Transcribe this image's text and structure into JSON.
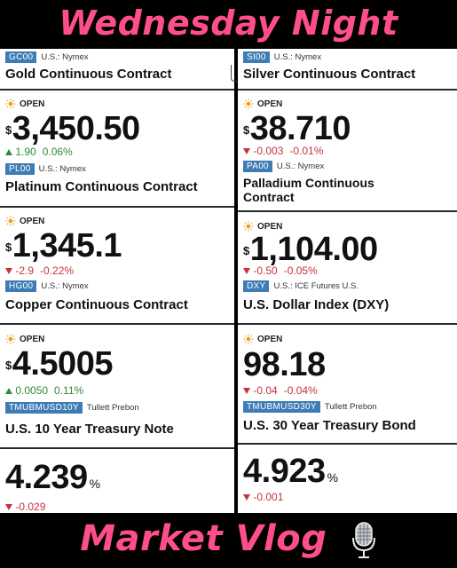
{
  "banner": {
    "top": "Wednesday Night",
    "bottom": "Market Vlog"
  },
  "colors": {
    "banner": "#ff4f8b",
    "badge": "#3d7cb5",
    "up": "#2f8a3b",
    "down": "#c8323c"
  },
  "icons": {
    "open": "sun-icon",
    "up": "triangle-up-icon",
    "down": "triangle-down-icon",
    "mic": "microphone-icon"
  },
  "left": {
    "gold": {
      "ticker": "GC00",
      "exchange": "U.S.: Nymex",
      "name": "Gold Continuous Contract"
    },
    "gold_quote": {
      "status": "OPEN",
      "currency": "$",
      "price": "3,450.50",
      "change": "1.90",
      "change_pct": "0.06%"
    },
    "platinum": {
      "ticker": "PL00",
      "exchange": "U.S.: Nymex",
      "name": "Platinum Continuous Contract"
    },
    "platinum_quote": {
      "status": "OPEN",
      "currency": "$",
      "price": "1,345.1",
      "change": "-2.9",
      "change_pct": "-0.22%"
    },
    "copper": {
      "ticker": "HG00",
      "exchange": "U.S.: Nymex",
      "name": "Copper Continuous Contract"
    },
    "copper_quote": {
      "status": "OPEN",
      "currency": "$",
      "price": "4.5005",
      "change": "0.0050",
      "change_pct": "0.11%"
    },
    "tnote10": {
      "ticker": "TMUBMUSD10Y",
      "exchange": "Tullett Prebon",
      "name": "U.S. 10 Year Treasury Note"
    },
    "tnote10_quote": {
      "price": "4.239",
      "unit": "%",
      "change": "-0.029"
    }
  },
  "right": {
    "silver": {
      "ticker": "SI00",
      "exchange": "U.S.: Nymex",
      "name": "Silver Continuous Contract"
    },
    "silver_quote": {
      "status": "OPEN",
      "currency": "$",
      "price": "38.710",
      "change": "-0.003",
      "change_pct": "-0.01%"
    },
    "palladium": {
      "ticker": "PA00",
      "exchange": "U.S.: Nymex",
      "name_line1": "Palladium Continuous",
      "name_line2": "Contract"
    },
    "palladium_quote": {
      "status": "OPEN",
      "currency": "$",
      "price": "1,104.00",
      "change": "-0.50",
      "change_pct": "-0.05%"
    },
    "dxy": {
      "ticker": "DXY",
      "exchange": "U.S.: ICE Futures U.S.",
      "name": "U.S. Dollar Index (DXY)"
    },
    "dxy_quote": {
      "status": "OPEN",
      "price": "98.18",
      "change": "-0.04",
      "change_pct": "-0.04%"
    },
    "tbond30": {
      "ticker": "TMUBMUSD30Y",
      "exchange": "Tullett Prebon",
      "name": "U.S. 30 Year Treasury Bond"
    },
    "tbond30_quote": {
      "price": "4.923",
      "unit": "%",
      "change": "-0.001"
    }
  }
}
